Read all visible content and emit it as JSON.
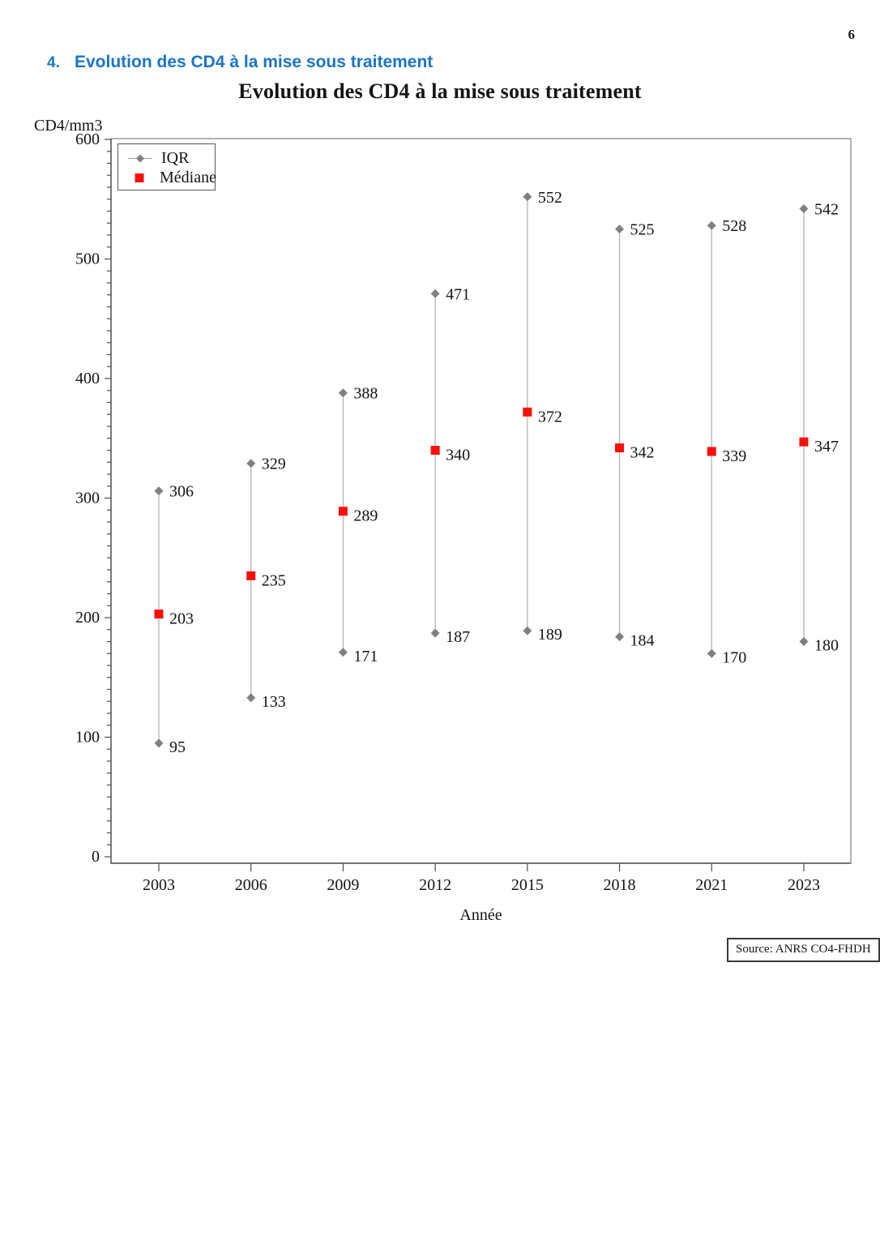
{
  "page": {
    "number": "6"
  },
  "heading": {
    "number": "4.",
    "text": "Evolution des CD4 à la mise sous traitement",
    "color": "#1B75C4"
  },
  "chart": {
    "title": "Evolution des CD4 à la mise sous traitement",
    "y_axis_title": "CD4/mm3",
    "x_axis_title": "Année",
    "source_note": "Source: ANRS CO4-FHDH",
    "legend": {
      "items": [
        {
          "label": "IQR",
          "marker": "diamond",
          "color": "#808080"
        },
        {
          "label": "Médiane",
          "marker": "square",
          "color": "#F8100C"
        }
      ]
    }
  },
  "chart_data": {
    "type": "scatter",
    "subtype": "high-low-median range plot (IQR whiskers with median markers)",
    "title": "Evolution des CD4 à la mise sous traitement",
    "xlabel": "Année",
    "ylabel": "CD4/mm3",
    "categories": [
      "2003",
      "2006",
      "2009",
      "2012",
      "2015",
      "2018",
      "2021",
      "2023"
    ],
    "series": [
      {
        "name": "IQR upper",
        "marker": "diamond",
        "color": "#808080",
        "values": [
          306,
          329,
          388,
          471,
          552,
          525,
          528,
          542
        ]
      },
      {
        "name": "Médiane",
        "marker": "square",
        "color": "#F8100C",
        "values": [
          203,
          235,
          289,
          340,
          372,
          342,
          339,
          347
        ]
      },
      {
        "name": "IQR lower",
        "marker": "diamond",
        "color": "#808080",
        "values": [
          95,
          133,
          171,
          187,
          189,
          184,
          170,
          180
        ]
      }
    ],
    "range_line_color": "#b3b3b3",
    "ylim": [
      0,
      600
    ],
    "y_major_tick_step": 100,
    "y_minor_tick_step": 10,
    "grid": false,
    "data_labels": true,
    "legend_position": "top-left inside plot",
    "legend_entries": [
      "IQR",
      "Médiane"
    ]
  }
}
